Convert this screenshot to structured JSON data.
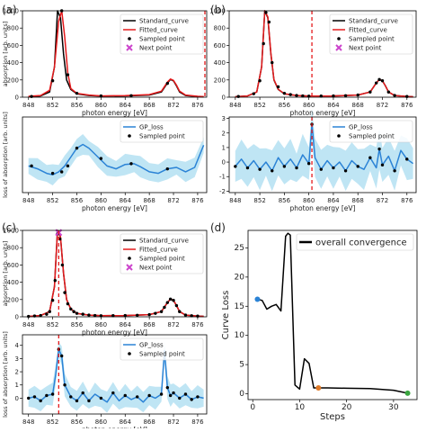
{
  "figure": {
    "panels": [
      {
        "label": "(a)"
      },
      {
        "label": "(b)"
      },
      {
        "label": "(c)"
      },
      {
        "label": "(d)"
      }
    ]
  },
  "chart_data": [
    {
      "type": "line",
      "panel": "(a)",
      "xlabel": "photon energy [eV]",
      "ylabel": "absorption [arb. units]",
      "xlim": [
        847,
        877.5
      ],
      "ylim": [
        0,
        1000
      ],
      "xticks": [
        848,
        852,
        856,
        860,
        864,
        868,
        872,
        876
      ],
      "yticks": [
        0,
        200,
        400,
        600,
        800,
        1000
      ],
      "legend": {
        "placement": "top-right",
        "entries": [
          "Standard_curve",
          "Fitted_curve",
          "Sampled point",
          "Next point"
        ]
      },
      "series": [
        {
          "name": "Standard_curve",
          "color": "#000000",
          "x": [
            848,
            850,
            851.5,
            852.3,
            852.8,
            853.3,
            853.8,
            854.3,
            855,
            856,
            858,
            860,
            864,
            868,
            870,
            871,
            871.5,
            872,
            872.5,
            873,
            874,
            876,
            877
          ],
          "y": [
            5,
            15,
            60,
            350,
            1000,
            920,
            500,
            200,
            90,
            40,
            20,
            12,
            15,
            25,
            60,
            165,
            205,
            190,
            130,
            60,
            20,
            8,
            5
          ]
        },
        {
          "name": "Fitted_curve",
          "color": "#e41a1c",
          "x": [
            848,
            850,
            851.5,
            852.3,
            853.0,
            853.5,
            854.0,
            854.5,
            855,
            856,
            858,
            860,
            864,
            868,
            870,
            871,
            871.5,
            872,
            872.5,
            873,
            874,
            876,
            877
          ],
          "y": [
            10,
            20,
            80,
            350,
            880,
            1000,
            700,
            280,
            100,
            45,
            25,
            15,
            18,
            30,
            70,
            175,
            210,
            195,
            140,
            70,
            25,
            10,
            6
          ]
        },
        {
          "name": "Sampled point",
          "color": "#000000",
          "x": [
            848.5,
            852,
            853.5,
            854.5,
            856,
            860,
            865,
            871
          ],
          "y": [
            8,
            190,
            1000,
            260,
            45,
            15,
            18,
            160
          ]
        },
        {
          "name": "Next point",
          "color": "#cc44cc",
          "x": [],
          "y": []
        }
      ]
    },
    {
      "type": "line",
      "panel": "(a)",
      "xlabel": "photon energy [eV]",
      "ylabel": "loss of absorption [arb. units]",
      "xlim": [
        847,
        877.5
      ],
      "ylim": [
        -1.9,
        3.2
      ],
      "xticks": [
        848,
        852,
        856,
        860,
        864,
        868,
        872,
        876
      ],
      "legend": {
        "placement": "top-right",
        "entries": [
          "GP_loss",
          "Sampled point"
        ]
      },
      "series": [
        {
          "name": "GP_loss",
          "color": "#2b83d6",
          "x": [
            848,
            849.5,
            851,
            852,
            853,
            854,
            855,
            856,
            857,
            858,
            859.5,
            861,
            862.5,
            864,
            865.5,
            866.5,
            868,
            869.5,
            871,
            872.5,
            874,
            875.5,
            877
          ],
          "y": [
            -0.1,
            -0.3,
            -0.6,
            -0.7,
            -0.5,
            -0.1,
            0.5,
            1.1,
            1.35,
            1.1,
            0.5,
            -0.1,
            -0.3,
            0.0,
            0.05,
            -0.15,
            -0.5,
            -0.6,
            -0.3,
            -0.2,
            -0.5,
            -0.2,
            1.3
          ]
        },
        {
          "name": "Sampled point",
          "color": "#000000",
          "x": [
            848.5,
            852,
            853.5,
            854.5,
            856,
            860,
            865,
            871
          ],
          "y": [
            -0.1,
            -0.6,
            -0.5,
            -0.1,
            1.1,
            0.4,
            0.05,
            -0.3
          ]
        }
      ]
    },
    {
      "type": "line",
      "panel": "(b)",
      "xlabel": "photon energy [eV]",
      "xlim": [
        847,
        877.5
      ],
      "ylim": [
        0,
        1000
      ],
      "xticks": [
        848,
        852,
        856,
        860,
        864,
        868,
        872,
        876
      ],
      "yticks": [
        0,
        200,
        400,
        600,
        800,
        1000
      ],
      "legend": {
        "placement": "top-right",
        "entries": [
          "Standard_curve",
          "Fitted_curve",
          "Sampled point",
          "Next point"
        ]
      },
      "series": [
        {
          "name": "Standard_curve",
          "color": "#000000",
          "x": [
            848,
            850,
            851.5,
            852.3,
            852.8,
            853.3,
            853.8,
            854.3,
            855,
            856,
            858,
            860,
            864,
            868,
            870,
            871,
            871.5,
            872,
            872.5,
            873,
            874,
            876,
            877
          ],
          "y": [
            5,
            15,
            60,
            350,
            1000,
            920,
            500,
            200,
            90,
            40,
            20,
            12,
            15,
            25,
            60,
            165,
            205,
            190,
            130,
            60,
            20,
            8,
            5
          ]
        },
        {
          "name": "Fitted_curve",
          "color": "#e41a1c",
          "x": [
            848,
            850,
            851.5,
            852.3,
            852.8,
            853.3,
            853.8,
            854.3,
            855,
            856,
            858,
            860,
            864,
            868,
            870,
            871,
            871.5,
            872,
            872.5,
            873,
            874,
            876,
            877
          ],
          "y": [
            5,
            15,
            60,
            350,
            1000,
            930,
            510,
            205,
            92,
            40,
            20,
            12,
            15,
            25,
            60,
            165,
            205,
            190,
            130,
            60,
            20,
            8,
            5
          ]
        },
        {
          "name": "Sampled point",
          "color": "#000000",
          "x": [
            848.5,
            851,
            852,
            852.6,
            853,
            853.5,
            854,
            855,
            856,
            857,
            858,
            859,
            860,
            862,
            864,
            866,
            868,
            870,
            871,
            871.5,
            872,
            873,
            874,
            876
          ],
          "y": [
            8,
            40,
            190,
            620,
            980,
            870,
            400,
            120,
            45,
            30,
            20,
            15,
            12,
            13,
            15,
            18,
            25,
            60,
            165,
            205,
            190,
            60,
            20,
            8
          ]
        },
        {
          "name": "Next point",
          "color": "#cc44cc",
          "x": [],
          "y": []
        }
      ]
    },
    {
      "type": "line",
      "panel": "(b)",
      "xlabel": "photon energy [eV]",
      "xlim": [
        847,
        877.5
      ],
      "ylim": [
        -2.1,
        3.1
      ],
      "xticks": [
        848,
        852,
        856,
        860,
        864,
        868,
        872,
        876
      ],
      "yticks": [
        -2,
        -1,
        0,
        1,
        2,
        3
      ],
      "legend": {
        "placement": "top-right",
        "entries": [
          "GP_loss",
          "Sampled point"
        ]
      },
      "series": [
        {
          "name": "GP_loss",
          "color": "#2b83d6",
          "x": [
            848,
            849,
            850,
            851,
            852,
            853,
            854,
            855,
            856,
            857,
            858,
            859,
            860,
            860.5,
            861,
            862,
            863,
            864,
            865,
            866,
            867,
            868,
            869,
            870,
            871,
            871.5,
            872,
            873,
            874,
            875,
            876,
            877
          ],
          "y": [
            -0.3,
            0.2,
            -0.4,
            0.1,
            -0.5,
            0.0,
            -0.6,
            0.3,
            -0.3,
            0.2,
            -0.4,
            0.5,
            -0.1,
            2.6,
            0.3,
            -0.5,
            0.1,
            -0.4,
            0.0,
            -0.6,
            0.1,
            -0.3,
            -0.5,
            0.3,
            -0.4,
            0.9,
            -0.2,
            0.4,
            -0.6,
            0.8,
            0.2,
            -0.1
          ]
        },
        {
          "name": "Sampled point",
          "color": "#000000",
          "x": [
            848,
            850,
            852,
            854,
            856,
            858,
            860,
            860.5,
            862,
            864,
            866,
            868,
            870,
            871.5,
            872,
            874,
            876
          ],
          "y": [
            -0.3,
            -0.4,
            -0.5,
            -0.6,
            -0.3,
            -0.4,
            -0.1,
            2.6,
            -0.5,
            -0.4,
            -0.6,
            -0.3,
            0.3,
            0.9,
            -0.2,
            -0.6,
            0.2
          ]
        }
      ]
    },
    {
      "type": "line",
      "panel": "(c)",
      "xlabel": "photon energy [eV]",
      "ylabel": "absorption [arb. units]",
      "xlim": [
        847,
        877.5
      ],
      "ylim": [
        0,
        1000
      ],
      "xticks": [
        848,
        852,
        856,
        860,
        864,
        868,
        872,
        876
      ],
      "yticks": [
        0,
        200,
        400,
        600,
        800,
        1000
      ],
      "legend": {
        "placement": "top-right",
        "entries": [
          "Standard_curve",
          "Fitted_curve",
          "Sampled point",
          "Next point"
        ]
      },
      "series": [
        {
          "name": "Standard_curve",
          "color": "#000000",
          "x": [
            848,
            850,
            851.5,
            852.3,
            852.8,
            853.3,
            853.8,
            854.3,
            855,
            856,
            858,
            860,
            864,
            868,
            870,
            871,
            871.5,
            872,
            872.5,
            873,
            874,
            876,
            877
          ],
          "y": [
            5,
            15,
            60,
            350,
            1000,
            920,
            500,
            200,
            90,
            40,
            20,
            12,
            15,
            25,
            60,
            165,
            205,
            190,
            130,
            60,
            20,
            8,
            5
          ]
        },
        {
          "name": "Fitted_curve",
          "color": "#e41a1c",
          "x": [
            848,
            850,
            851.5,
            852.3,
            852.8,
            853.3,
            853.8,
            854.3,
            855,
            856,
            858,
            860,
            864,
            868,
            870,
            871,
            871.5,
            872,
            872.5,
            873,
            874,
            876,
            877
          ],
          "y": [
            5,
            15,
            60,
            350,
            1000,
            925,
            505,
            200,
            90,
            40,
            20,
            12,
            15,
            25,
            60,
            165,
            205,
            190,
            130,
            60,
            20,
            8,
            5
          ]
        },
        {
          "name": "Sampled point",
          "color": "#000000",
          "x": [
            848,
            849,
            850,
            851,
            851.5,
            852,
            852.4,
            852.8,
            853.2,
            853.6,
            854,
            854.5,
            855,
            855.5,
            856,
            857,
            858,
            859,
            860,
            862,
            864,
            866,
            868,
            869,
            870,
            870.5,
            871,
            871.5,
            872,
            872.5,
            873,
            874,
            875,
            876
          ],
          "y": [
            5,
            10,
            15,
            30,
            60,
            190,
            420,
            960,
            900,
            600,
            280,
            150,
            90,
            60,
            40,
            30,
            20,
            15,
            12,
            13,
            15,
            18,
            25,
            40,
            60,
            110,
            165,
            205,
            190,
            130,
            60,
            20,
            12,
            8
          ]
        },
        {
          "name": "Next point",
          "color": "#cc44cc",
          "x": [
            853.0
          ],
          "y": [
            975
          ]
        }
      ]
    },
    {
      "type": "line",
      "panel": "(c)",
      "xlabel": "photon energy [eV]",
      "ylabel": "loss of absorption [arb. units]",
      "xlim": [
        847,
        877.5
      ],
      "ylim": [
        -1.2,
        4.8
      ],
      "xticks": [
        848,
        852,
        856,
        860,
        864,
        868,
        872,
        876
      ],
      "yticks": [
        0,
        1,
        2,
        3,
        4
      ],
      "legend": {
        "placement": "top-right",
        "entries": [
          "GP_loss",
          "Sampled point"
        ]
      },
      "series": [
        {
          "name": "GP_loss",
          "color": "#2b83d6",
          "x": [
            848,
            849,
            850,
            851,
            852,
            852.5,
            853,
            853.5,
            854,
            855,
            856,
            857,
            858,
            859,
            860,
            861,
            862,
            863,
            864,
            865,
            866,
            867,
            868,
            869,
            870,
            870.5,
            871,
            871.5,
            872,
            873,
            874,
            875,
            876,
            877
          ],
          "y": [
            0.0,
            0.1,
            -0.2,
            0.2,
            0.3,
            1.8,
            3.7,
            3.2,
            1.0,
            0.1,
            -0.2,
            0.4,
            -0.2,
            0.3,
            0.0,
            -0.3,
            0.4,
            -0.2,
            0.2,
            -0.1,
            0.1,
            -0.3,
            0.2,
            0.0,
            0.3,
            3.6,
            0.8,
            0.2,
            0.4,
            0.0,
            0.3,
            -0.1,
            0.1,
            0.0
          ]
        },
        {
          "name": "Sampled point",
          "color": "#000000",
          "x": [
            848,
            849,
            850,
            851,
            852,
            853,
            853.5,
            854,
            855,
            856,
            857,
            858,
            860,
            862,
            864,
            866,
            868,
            870,
            871,
            871.5,
            872,
            873,
            874,
            875,
            876
          ],
          "y": [
            0.0,
            0.1,
            -0.2,
            0.2,
            0.3,
            3.7,
            3.2,
            1.0,
            0.1,
            -0.2,
            0.4,
            -0.2,
            0.0,
            0.4,
            0.2,
            0.1,
            0.2,
            0.3,
            0.8,
            0.2,
            0.4,
            0.0,
            0.3,
            -0.1,
            0.1
          ]
        }
      ]
    },
    {
      "type": "line",
      "panel": "(d)",
      "xlabel": "Steps",
      "ylabel": "Curve Loss",
      "xlim": [
        -1,
        35
      ],
      "ylim": [
        -1,
        28
      ],
      "xticks": [
        0,
        10,
        20,
        30
      ],
      "yticks": [
        0,
        5,
        10,
        15,
        20,
        25
      ],
      "legend": {
        "placement": "top-right",
        "entries": [
          "overall convergence"
        ]
      },
      "series": [
        {
          "name": "overall convergence",
          "color": "#000000",
          "x": [
            1,
            2,
            3,
            4,
            5,
            6,
            7,
            7.5,
            8,
            9,
            10,
            11,
            12,
            13,
            14,
            16,
            20,
            25,
            30,
            33
          ],
          "y": [
            16.2,
            16.0,
            14.5,
            15.0,
            15.3,
            14.2,
            27.0,
            27.5,
            27.2,
            1.5,
            0.8,
            6.0,
            5.2,
            1.0,
            1.0,
            1.0,
            0.95,
            0.9,
            0.6,
            0.1
          ]
        }
      ],
      "markers": [
        {
          "x": 1,
          "y": 16.2,
          "color": "#2b83d6"
        },
        {
          "x": 14,
          "y": 1.0,
          "color": "#e07a28"
        },
        {
          "x": 33,
          "y": 0.1,
          "color": "#3aa540"
        }
      ]
    }
  ]
}
